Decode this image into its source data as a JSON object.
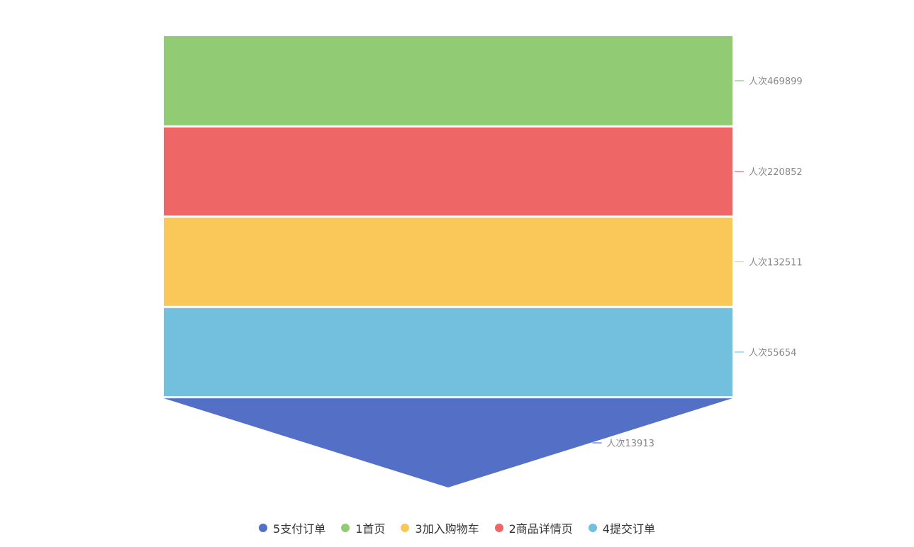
{
  "chart_data": {
    "type": "funnel",
    "sort": "descending",
    "label_prefix": "人次",
    "stages": [
      {
        "name": "1首页",
        "value": 469899,
        "color": "#91cc75"
      },
      {
        "name": "2商品详情页",
        "value": 220852,
        "color": "#ee6666"
      },
      {
        "name": "3加入购物车",
        "value": 132511,
        "color": "#fac858"
      },
      {
        "name": "4提交订单",
        "value": 55654,
        "color": "#73c0de"
      },
      {
        "name": "5支付订单",
        "value": 13913,
        "color": "#5470c6"
      }
    ],
    "legend": {
      "position": "bottom-center",
      "items": [
        {
          "label": "5支付订单",
          "color": "#5470c6"
        },
        {
          "label": "1首页",
          "color": "#91cc75"
        },
        {
          "label": "3加入购物车",
          "color": "#fac858"
        },
        {
          "label": "2商品详情页",
          "color": "#ee6666"
        },
        {
          "label": "4提交订单",
          "color": "#73c0de"
        }
      ]
    }
  }
}
